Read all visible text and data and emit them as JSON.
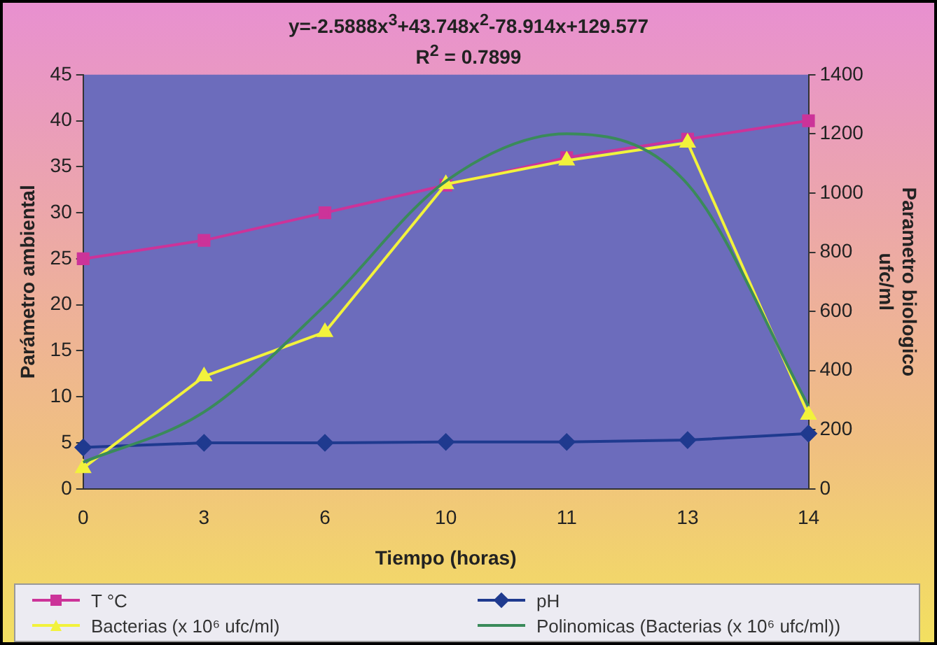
{
  "chart_data": {
    "type": "line",
    "title": "y=-2.5888x$^{3}$+43.748x$^{2}$-78.914x+129.577",
    "subtitle": "R$^{2}$ = 0.7899",
    "xlabel": "Tiempo (horas)",
    "ylabel": "Parámetro ambiental",
    "y2label": "Parametro biologico ufc/ml",
    "categories": [
      "0",
      "3",
      "6",
      "10",
      "11",
      "13",
      "14"
    ],
    "series": [
      {
        "name": "T °C",
        "color": "#cc3399",
        "marker": "square",
        "values": [
          25,
          27,
          30,
          33,
          36,
          38,
          40
        ]
      },
      {
        "name": "pH",
        "color": "#1f3a8f",
        "marker": "diamond",
        "values": [
          4.5,
          5,
          5,
          5.1,
          5.1,
          5.3,
          6
        ]
      },
      {
        "name": "Bacterias (x 10⁶ ufc/ml)",
        "color": "#f2f23c",
        "marker": "triangle",
        "axis": "y2",
        "values": [
          70,
          380,
          530,
          1030,
          1110,
          1170,
          250
        ]
      },
      {
        "name": "Polinomicas (Bacterias (x 10⁶ ufc/ml))",
        "color": "#3a8a5a",
        "marker": "none",
        "axis": "y2",
        "values": [
          90,
          260,
          620,
          1040,
          1200,
          1030,
          280
        ]
      }
    ],
    "ylim": [
      0,
      45
    ],
    "yticks": [
      0,
      5,
      10,
      15,
      20,
      25,
      30,
      35,
      40,
      45
    ],
    "y2lim": [
      0,
      1400
    ],
    "y2ticks": [
      0,
      200,
      400,
      600,
      800,
      1000,
      1200,
      1400
    ],
    "grid": false,
    "legend": "bottom"
  }
}
